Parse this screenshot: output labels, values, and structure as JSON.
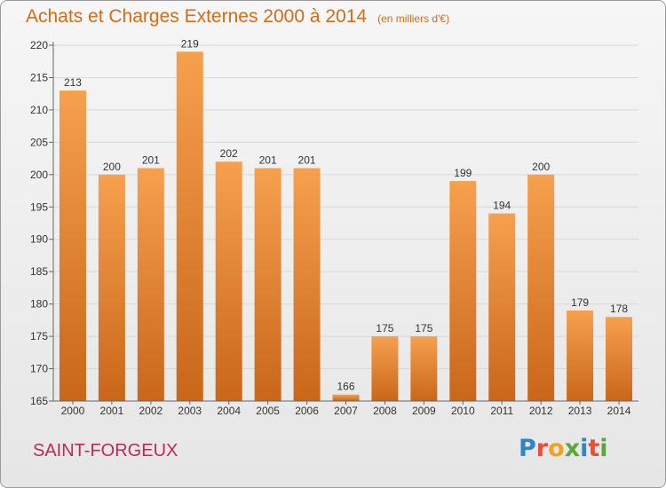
{
  "header": {
    "title": "Achats et Charges Externes 2000 à 2014",
    "unit_note": "(en milliers d'€)"
  },
  "footer": {
    "location": "SAINT-FORGEUX",
    "logo_text": "Proxiti"
  },
  "colors": {
    "bar_light": "#f6a04e",
    "bar_dark": "#c9661a",
    "title": "#d86a12",
    "location": "#c0285a",
    "grid": "#d8d8d8",
    "axis": "#666666",
    "logo_letters": [
      "#2e86c8",
      "#e94e3a",
      "#f0a21c",
      "#5aa83b",
      "#2e86c8",
      "#e94e3a",
      "#5aa83b"
    ]
  },
  "chart_data": {
    "type": "bar",
    "title": "Achats et Charges Externes 2000 à 2014",
    "subtitle": "(en milliers d'€)",
    "xlabel": "",
    "ylabel": "",
    "categories": [
      "2000",
      "2001",
      "2002",
      "2003",
      "2004",
      "2005",
      "2006",
      "2007",
      "2008",
      "2009",
      "2010",
      "2011",
      "2012",
      "2013",
      "2014"
    ],
    "values": [
      213,
      200,
      201,
      219,
      202,
      201,
      201,
      166,
      175,
      175,
      199,
      194,
      200,
      179,
      178
    ],
    "ylim": [
      165,
      220
    ],
    "yticks": [
      165,
      170,
      175,
      180,
      185,
      190,
      195,
      200,
      205,
      210,
      215,
      220
    ],
    "grid": true
  }
}
